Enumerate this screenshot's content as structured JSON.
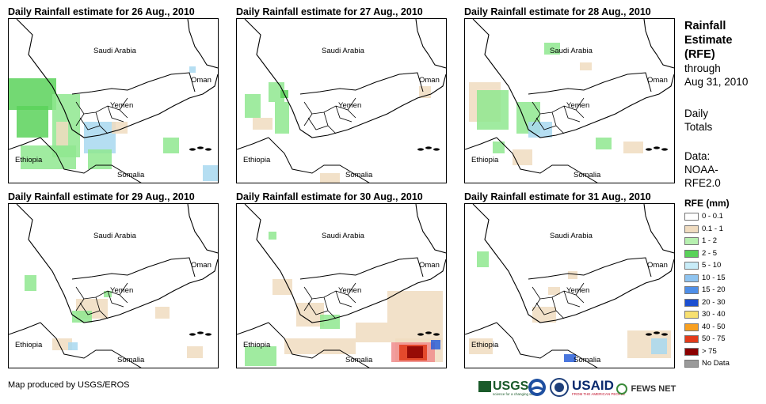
{
  "panels": [
    {
      "title": "Daily Rainfall estimate for 26 Aug., 2010",
      "rain": [
        [
          0,
          75,
          60,
          40,
          "#5ad25a"
        ],
        [
          10,
          110,
          40,
          40,
          "#5ad25a"
        ],
        [
          55,
          95,
          35,
          80,
          "#8fe88f"
        ],
        [
          95,
          130,
          40,
          40,
          "#a8d8f0"
        ],
        [
          15,
          160,
          70,
          30,
          "#8fe88f"
        ],
        [
          100,
          165,
          30,
          25,
          "#8fe88f"
        ],
        [
          195,
          150,
          20,
          20,
          "#8fe88f"
        ],
        [
          245,
          185,
          20,
          20,
          "#a8d8f0"
        ],
        [
          60,
          130,
          15,
          30,
          "#f0dcc0"
        ],
        [
          130,
          130,
          20,
          15,
          "#f0dcc0"
        ],
        [
          228,
          60,
          8,
          8,
          "#a8d8f0"
        ]
      ]
    },
    {
      "title": "Daily Rainfall estimate for 27 Aug., 2010",
      "rain": [
        [
          10,
          95,
          20,
          30,
          "#8fe88f"
        ],
        [
          40,
          80,
          20,
          25,
          "#8fe88f"
        ],
        [
          48,
          105,
          18,
          40,
          "#8fe88f"
        ],
        [
          20,
          125,
          25,
          15,
          "#f0dcc0"
        ],
        [
          105,
          195,
          25,
          15,
          "#f0dcc0"
        ],
        [
          230,
          85,
          15,
          15,
          "#f0dcc0"
        ],
        [
          55,
          90,
          10,
          10,
          "#5ad25a"
        ]
      ]
    },
    {
      "title": "Daily Rainfall estimate for 28 Aug., 2010",
      "rain": [
        [
          5,
          80,
          40,
          50,
          "#f0dcc0"
        ],
        [
          15,
          90,
          40,
          50,
          "#8fe88f"
        ],
        [
          65,
          105,
          30,
          40,
          "#8fe88f"
        ],
        [
          80,
          130,
          30,
          20,
          "#a8d8f0"
        ],
        [
          100,
          30,
          20,
          15,
          "#8fe88f"
        ],
        [
          200,
          155,
          25,
          15,
          "#f0dcc0"
        ],
        [
          165,
          150,
          20,
          15,
          "#8fe88f"
        ],
        [
          35,
          155,
          15,
          15,
          "#8fe88f"
        ],
        [
          60,
          165,
          25,
          20,
          "#f0dcc0"
        ],
        [
          145,
          55,
          15,
          10,
          "#f0dcc0"
        ]
      ]
    },
    {
      "title": "Daily Rainfall estimate for 29 Aug., 2010",
      "rain": [
        [
          20,
          90,
          15,
          20,
          "#8fe88f"
        ],
        [
          85,
          120,
          40,
          25,
          "#f0dcc0"
        ],
        [
          80,
          135,
          25,
          15,
          "#8fe88f"
        ],
        [
          55,
          170,
          25,
          15,
          "#f0dcc0"
        ],
        [
          75,
          175,
          12,
          10,
          "#a8d8f0"
        ],
        [
          225,
          180,
          20,
          15,
          "#f0dcc0"
        ],
        [
          185,
          130,
          18,
          15,
          "#f0dcc0"
        ],
        [
          120,
          110,
          10,
          8,
          "#8fe88f"
        ]
      ]
    },
    {
      "title": "Daily Rainfall estimate for 30 Aug., 2010",
      "rain": [
        [
          40,
          35,
          10,
          10,
          "#8fe88f"
        ],
        [
          190,
          110,
          70,
          40,
          "#f0dcc0"
        ],
        [
          150,
          150,
          110,
          25,
          "#f0dcc0"
        ],
        [
          60,
          170,
          90,
          20,
          "#f0dcc0"
        ],
        [
          200,
          170,
          60,
          30,
          "#f0dcc0"
        ],
        [
          10,
          180,
          40,
          25,
          "#8fe88f"
        ],
        [
          195,
          175,
          55,
          25,
          "#f08c8c"
        ],
        [
          205,
          178,
          35,
          20,
          "#e23b1a"
        ],
        [
          215,
          180,
          20,
          15,
          "#8b0000"
        ],
        [
          245,
          172,
          12,
          12,
          "#2a5fd8"
        ],
        [
          45,
          95,
          25,
          20,
          "#f0dcc0"
        ],
        [
          75,
          125,
          35,
          30,
          "#f0dcc0"
        ],
        [
          105,
          140,
          25,
          18,
          "#8fe88f"
        ]
      ]
    },
    {
      "title": "Daily Rainfall estimate for 31 Aug., 2010",
      "rain": [
        [
          15,
          60,
          15,
          20,
          "#8fe88f"
        ],
        [
          85,
          130,
          30,
          20,
          "#f0dcc0"
        ],
        [
          205,
          160,
          55,
          35,
          "#f0dcc0"
        ],
        [
          235,
          170,
          20,
          20,
          "#a8d8f0"
        ],
        [
          5,
          170,
          30,
          20,
          "#f0dcc0"
        ],
        [
          125,
          190,
          15,
          10,
          "#2a5fd8"
        ],
        [
          130,
          85,
          12,
          10,
          "#f0dcc0"
        ],
        [
          105,
          105,
          15,
          10,
          "#f0dcc0"
        ]
      ]
    }
  ],
  "labels": {
    "saudi": "Saudi Arabia",
    "oman": "Oman",
    "yemen": "Yemen",
    "ethiopia": "Ethiopia",
    "somalia": "Somalia"
  },
  "side": {
    "title_line1": "Rainfall",
    "title_line2": "Estimate",
    "title_line3": "(RFE)",
    "through": "through",
    "date": "Aug 31, 2010",
    "daily1": "Daily",
    "daily2": "Totals",
    "data_label": "Data:",
    "data1": "NOAA-",
    "data2": "RFE2.0"
  },
  "legend": {
    "title": "RFE (mm)",
    "items": [
      {
        "label": "0 - 0.1",
        "color": "#ffffff"
      },
      {
        "label": "0.1 - 1",
        "color": "#f0dcc0"
      },
      {
        "label": "1 - 2",
        "color": "#b7f0b0"
      },
      {
        "label": "2 - 5",
        "color": "#5ad25a"
      },
      {
        "label": "5 - 10",
        "color": "#c8ecf8"
      },
      {
        "label": "10 - 15",
        "color": "#8fc4f0"
      },
      {
        "label": "15 - 20",
        "color": "#4f8fe8"
      },
      {
        "label": "20 - 30",
        "color": "#1c4fd0"
      },
      {
        "label": "30 - 40",
        "color": "#f8e070"
      },
      {
        "label": "40 - 50",
        "color": "#f8a020"
      },
      {
        "label": "50 - 75",
        "color": "#e23b1a"
      },
      {
        "label": "> 75",
        "color": "#8b0000"
      },
      {
        "label": "No Data",
        "color": "#9a9a9a"
      }
    ]
  },
  "footer": "Map produced by USGS/EROS",
  "logos": {
    "usgs": "USGS",
    "usgs_tag": "science for a changing world",
    "usaid": "USAID",
    "usaid_tag": "FROM THE AMERICAN PEOPLE",
    "fews": "FEWS NET"
  }
}
